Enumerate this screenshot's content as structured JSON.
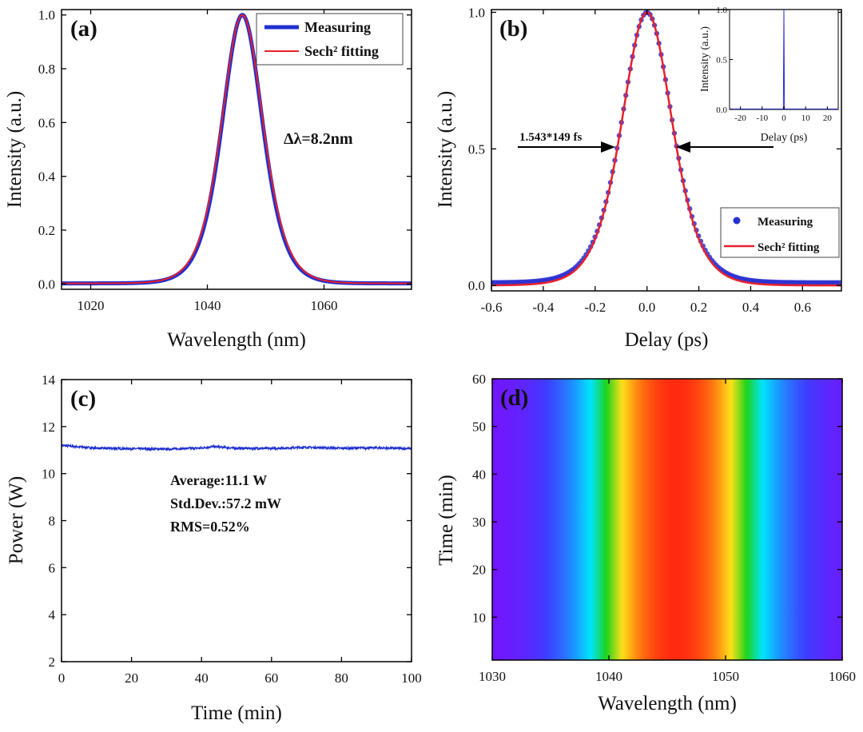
{
  "chart_data": [
    {
      "id": "a",
      "type": "line",
      "panel_label": "(a)",
      "xlabel": "Wavelength (nm)",
      "ylabel": "Intensity (a.u.)",
      "xlim": [
        1015,
        1075
      ],
      "ylim": [
        -0.02,
        1.02
      ],
      "xticks": [
        1020,
        1040,
        1060
      ],
      "yticks": [
        0.0,
        0.2,
        0.4,
        0.6,
        0.8,
        1.0
      ],
      "ytick_labels": [
        "0.0",
        "0.2",
        "0.4",
        "0.6",
        "0.8",
        "1.0"
      ],
      "annotation": "Δλ=8.2nm",
      "legend_position": "top-right",
      "series": [
        {
          "name": "Measuring",
          "color": "#1f2fd0",
          "center": 1046,
          "fwhm": 8.2,
          "baseline": 0.002
        },
        {
          "name": "Sech² fitting",
          "color": "#e8202a",
          "center": 1046,
          "fwhm": 8.4,
          "baseline": 0.002
        }
      ]
    },
    {
      "id": "b",
      "type": "scatter",
      "panel_label": "(b)",
      "xlabel": "Delay (ps)",
      "ylabel": "Intensity (a.u.)",
      "xlim": [
        -0.6,
        0.75
      ],
      "ylim": [
        -0.02,
        1.01
      ],
      "xticks": [
        -0.6,
        -0.4,
        -0.2,
        0.0,
        0.2,
        0.4,
        0.6
      ],
      "xtick_labels": [
        "-0.6",
        "-0.4",
        "-0.2",
        "0.0",
        "0.2",
        "0.4",
        "0.6"
      ],
      "yticks": [
        0.0,
        0.5,
        1.0
      ],
      "ytick_labels": [
        "0.0",
        "0.5",
        "1.0"
      ],
      "annotation": "1.543*149 fs",
      "autocorrelation_fwhm_ps": 0.23,
      "legend_position": "bottom-right",
      "series": [
        {
          "name": "Measuring",
          "color": "#2a2fd0",
          "marker": "circle",
          "fwhm": 0.23,
          "baseline": 0.01
        },
        {
          "name": "Sech² fitting",
          "color": "#e8202a",
          "fwhm": 0.23,
          "baseline": 0.0
        }
      ],
      "inset": {
        "type": "line",
        "xlabel": "Delay (ps)",
        "ylabel": "Intensity (a.u.)",
        "xlim": [
          -25,
          25
        ],
        "ylim": [
          0,
          1
        ],
        "xticks": [
          -20,
          -10,
          0,
          10,
          20
        ],
        "yticks": [
          0.0,
          0.5,
          1.0
        ],
        "ytick_labels": [
          "0.0",
          "0.5",
          "1.0"
        ],
        "color": "#2a2fd0"
      }
    },
    {
      "id": "c",
      "type": "line",
      "panel_label": "(c)",
      "xlabel": "Time (min)",
      "ylabel": "Power (W)",
      "xlim": [
        0,
        100
      ],
      "ylim": [
        2,
        14
      ],
      "xticks": [
        0,
        20,
        40,
        60,
        80,
        100
      ],
      "yticks": [
        2,
        4,
        6,
        8,
        10,
        12,
        14
      ],
      "annotations": [
        "Average:11.1 W",
        "Std.Dev.:57.2 mW",
        "RMS=0.52%"
      ],
      "series": [
        {
          "color": "#1f2fd0",
          "x": [
            0,
            10,
            20,
            30,
            40,
            43,
            50,
            60,
            70,
            80,
            90,
            100
          ],
          "y": [
            11.2,
            11.08,
            11.06,
            11.04,
            11.09,
            11.15,
            11.08,
            11.07,
            11.12,
            11.08,
            11.1,
            11.06
          ]
        }
      ]
    },
    {
      "id": "d",
      "type": "heatmap",
      "panel_label": "(d)",
      "xlabel": "Wavelength (nm)",
      "ylabel": "Time (min)",
      "xlim": [
        1030,
        1060
      ],
      "ylim": [
        1,
        60
      ],
      "xticks": [
        1030,
        1040,
        1050,
        1060
      ],
      "yticks": [
        10,
        20,
        30,
        40,
        50,
        60
      ],
      "spectrum_center_nm": 1045.8,
      "colors": [
        "#7a10ff",
        "#3f3cff",
        "#1f8cff",
        "#00e5ff",
        "#1ed21a",
        "#ffe11a",
        "#ff7a10",
        "#ff2a10"
      ]
    }
  ]
}
